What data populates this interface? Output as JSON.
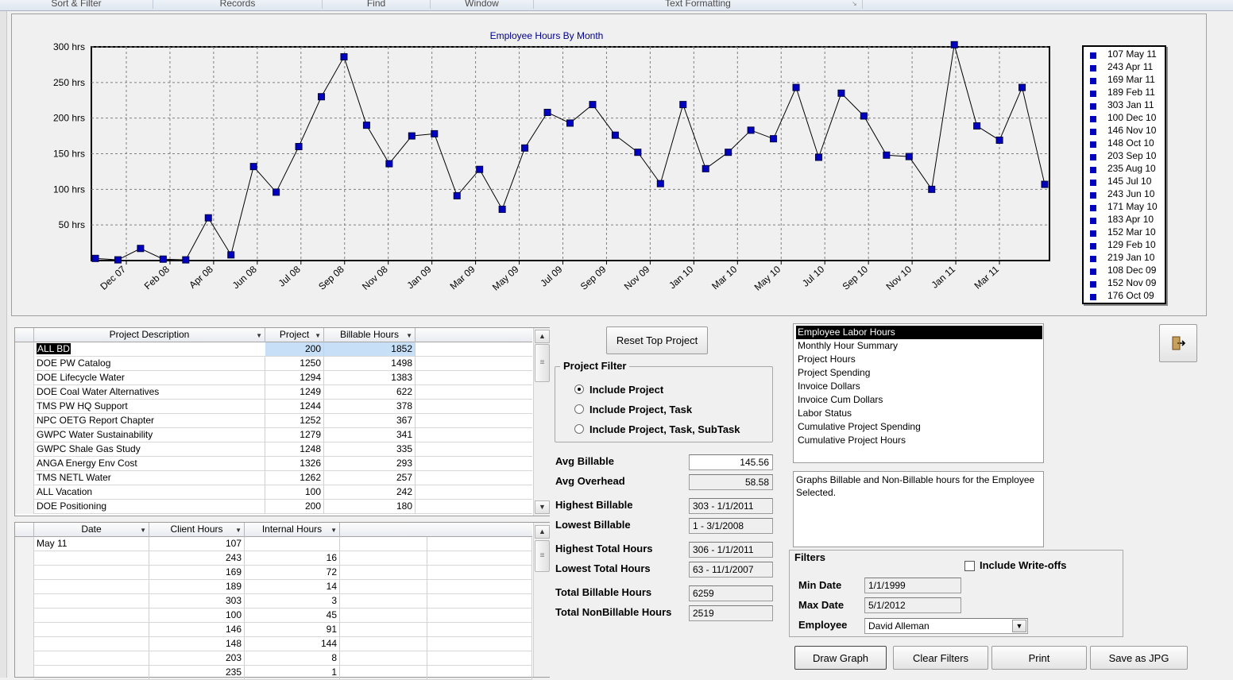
{
  "ribbon": {
    "groups": [
      "Sort & Filter",
      "Records",
      "Find",
      "Window",
      "Text Formatting"
    ]
  },
  "chart_data": {
    "type": "line",
    "title": "Employee Hours By Month",
    "xlabel": "",
    "ylabel": "",
    "ylim": [
      0,
      300
    ],
    "y_ticks": [
      "50 hrs",
      "100 hrs",
      "150 hrs",
      "200 hrs",
      "250 hrs",
      "300 hrs"
    ],
    "x_tick_labels": [
      "Dec 07",
      "Feb 08",
      "Apr 08",
      "Jun 08",
      "Jul 08",
      "Sep 08",
      "Nov 08",
      "Jan 09",
      "Mar 09",
      "May 09",
      "Jul 09",
      "Sep 09",
      "Nov 09",
      "Jan 10",
      "Mar 10",
      "May 10",
      "Jul 10",
      "Sep 10",
      "Nov 10",
      "Jan 11",
      "Mar 11"
    ],
    "grid": true,
    "legend_placement": "right",
    "series": [
      {
        "values": [
          3,
          1,
          17,
          2,
          1,
          60,
          8,
          132,
          96,
          160,
          230,
          286,
          190,
          136,
          175,
          178,
          91,
          128,
          72,
          158,
          208,
          193,
          219,
          176,
          152,
          108,
          219,
          129,
          152,
          183,
          171,
          243,
          145,
          235,
          203,
          148,
          146,
          100,
          303,
          189,
          169,
          243,
          107
        ]
      }
    ],
    "legend_entries": [
      "107 May 11",
      "243 Apr 11",
      "169 Mar 11",
      "189 Feb 11",
      "303 Jan 11",
      "100 Dec 10",
      "146 Nov 10",
      "148 Oct 10",
      "203 Sep 10",
      "235 Aug 10",
      "145 Jul 10",
      "243 Jun 10",
      "171 May 10",
      "183 Apr 10",
      "152 Mar 10",
      "129 Feb 10",
      "219 Jan 10",
      "108 Dec 09",
      "152 Nov 09",
      "176 Oct 09"
    ],
    "colors": {
      "marker": "#0000c0",
      "line": "#000000",
      "plot_bg": "#f0f0f0",
      "grid": "#808080"
    }
  },
  "project_grid": {
    "headers": [
      "Project Description",
      "Project",
      "Billable Hours"
    ],
    "rows": [
      [
        "ALL BD",
        "200",
        "1852"
      ],
      [
        "DOE PW Catalog",
        "1250",
        "1498"
      ],
      [
        "DOE Lifecycle Water",
        "1294",
        "1383"
      ],
      [
        "DOE Coal Water Alternatives",
        "1249",
        "622"
      ],
      [
        "TMS PW HQ Support",
        "1244",
        "378"
      ],
      [
        "NPC OETG Report Chapter",
        "1252",
        "367"
      ],
      [
        "GWPC Water Sustainability",
        "1279",
        "341"
      ],
      [
        "GWPC Shale Gas Study",
        "1248",
        "335"
      ],
      [
        "ANGA Energy Env Cost",
        "1326",
        "293"
      ],
      [
        "TMS NETL Water",
        "1262",
        "257"
      ],
      [
        "ALL Vacation",
        "100",
        "242"
      ],
      [
        "DOE Positioning",
        "200",
        "180"
      ]
    ]
  },
  "hours_grid": {
    "headers": [
      "Date",
      "Client Hours",
      "Internal Hours"
    ],
    "rows": [
      [
        "May 11",
        "107",
        ""
      ],
      [
        "",
        "243",
        "16"
      ],
      [
        "",
        "169",
        "72"
      ],
      [
        "",
        "189",
        "14"
      ],
      [
        "",
        "303",
        "3"
      ],
      [
        "",
        "100",
        "45"
      ],
      [
        "",
        "146",
        "91"
      ],
      [
        "",
        "148",
        "144"
      ],
      [
        "",
        "203",
        "8"
      ],
      [
        "",
        "235",
        "1"
      ]
    ]
  },
  "controls": {
    "reset_top_project": "Reset Top Project",
    "project_filter_title": "Project Filter",
    "radio_options": [
      "Include Project",
      "Include Project, Task",
      "Include Project, Task, SubTask"
    ],
    "selected_radio": 0
  },
  "stats": [
    {
      "label": "Avg Billable",
      "value": "145.56"
    },
    {
      "label": "Avg Overhead",
      "value": "58.58"
    },
    {
      "label": "Highest Billable",
      "value": "303 - 1/1/2011"
    },
    {
      "label": "Lowest Billable",
      "value": "1 - 3/1/2008"
    },
    {
      "label": "Highest Total  Hours",
      "value": "306 - 1/1/2011"
    },
    {
      "label": "Lowest Total Hours",
      "value": "63 - 11/1/2007"
    },
    {
      "label": "Total Billable Hours",
      "value": "6259"
    },
    {
      "label": "Total NonBillable Hours",
      "value": "2519"
    }
  ],
  "report_list": {
    "items": [
      "Employee Labor Hours",
      "Monthly Hour Summary",
      "Project Hours",
      "Project Spending",
      "Invoice Dollars",
      "Invoice Cum Dollars",
      "Labor Status",
      "Cumulative Project Spending",
      "Cumulative Project Hours"
    ],
    "selected": 0
  },
  "description": "Graphs Billable and Non-Billable hours for the Employee Selected.",
  "filters": {
    "title": "Filters",
    "include_writeoffs_label": "Include Write-offs",
    "include_writeoffs_checked": false,
    "min_date_label": "Min Date",
    "min_date": "1/1/1999",
    "max_date_label": "Max Date",
    "max_date": "5/1/2012",
    "employee_label": "Employee",
    "employee": "David Alleman"
  },
  "actions": [
    "Draw Graph",
    "Clear Filters",
    "Print",
    "Save as JPG"
  ]
}
